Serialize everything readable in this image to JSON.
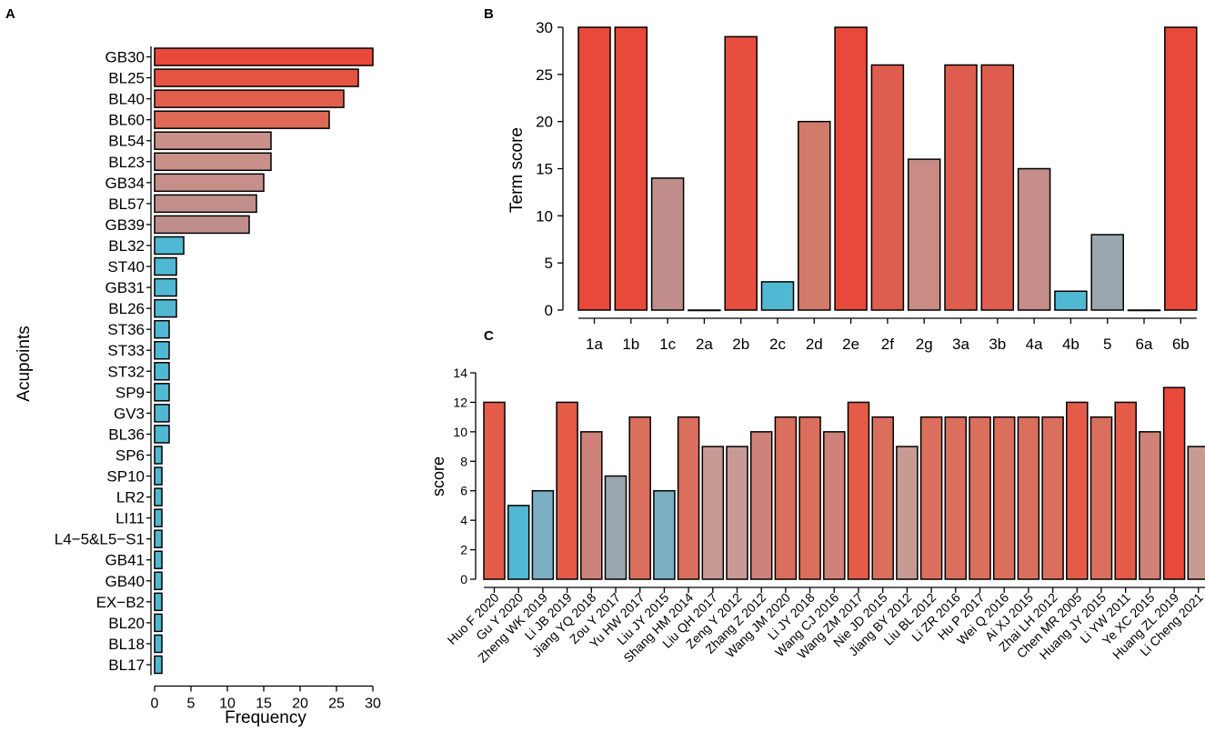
{
  "panels": {
    "a": "A",
    "b": "B",
    "c": "C"
  },
  "colors": {
    "high": "#E8493A",
    "mid": "#BF8E8C",
    "low": "#50B8D2",
    "grey": "#9AA7AE"
  },
  "chart_data": [
    {
      "id": "A",
      "type": "bar",
      "orientation": "horizontal",
      "categories": [
        "GB30",
        "BL25",
        "BL40",
        "BL60",
        "BL54",
        "BL23",
        "GB34",
        "BL57",
        "GB39",
        "BL32",
        "ST40",
        "GB31",
        "BL26",
        "ST36",
        "ST33",
        "ST32",
        "SP9",
        "GV3",
        "BL36",
        "SP6",
        "SP10",
        "LR2",
        "LI11",
        "L4−5&L5−S1",
        "GB41",
        "GB40",
        "EX−B2",
        "BL20",
        "BL18",
        "BL17"
      ],
      "values": [
        30,
        28,
        26,
        24,
        16,
        16,
        15,
        14,
        13,
        4,
        3,
        3,
        3,
        2,
        2,
        2,
        2,
        2,
        2,
        1,
        1,
        1,
        1,
        1,
        1,
        1,
        1,
        1,
        1,
        1
      ],
      "xlabel": "Frequency",
      "ylabel": "Acupoints",
      "xlim": [
        0,
        30
      ],
      "xticks": [
        "0",
        "5",
        "10",
        "15",
        "20",
        "25",
        "30"
      ],
      "grid": false
    },
    {
      "id": "B",
      "type": "bar",
      "categories": [
        "1a",
        "1b",
        "1c",
        "2a",
        "2b",
        "2c",
        "2d",
        "2e",
        "2f",
        "2g",
        "3a",
        "3b",
        "4a",
        "4b",
        "5",
        "6a",
        "6b"
      ],
      "values": [
        30,
        30,
        14,
        0,
        29,
        3,
        20,
        30,
        26,
        16,
        26,
        26,
        15,
        2,
        8,
        0,
        30
      ],
      "xlabel": "",
      "ylabel": "Term score",
      "ylim": [
        0,
        30
      ],
      "yticks": [
        "0",
        "5",
        "10",
        "15",
        "20",
        "25",
        "30"
      ],
      "grid": false
    },
    {
      "id": "C",
      "type": "bar",
      "categories": [
        "Huo F 2020",
        "Gu Y 2020",
        "Zheng WK 2019",
        "Li JB 2019",
        "Jiang YQ 2018",
        "Zou Y 2017",
        "Yu HW 2017",
        "Liu JY 2015",
        "Shang HM 2014",
        "Liu QH 2017",
        "Zeng Y 2012",
        "Zhang Z 2012",
        "Wang JM 2020",
        "Li JY 2018",
        "Wang CJ 2016",
        "Wang ZM 2017",
        "Nie JD 2015",
        "Jiang BY 2012",
        "Liu BL 2012",
        "Li ZR 2016",
        "Hu P 2017",
        "Wei Q 2016",
        "Ai XJ 2015",
        "Zhai LH 2012",
        "Chen MR 2005",
        "Huang JY 2015",
        "Li YW 2011",
        "Ye XC 2015",
        "Huang ZL 2019",
        "Li Cheng 2021"
      ],
      "values": [
        12,
        5,
        6,
        12,
        10,
        7,
        11,
        6,
        11,
        9,
        9,
        10,
        11,
        11,
        10,
        12,
        11,
        9,
        11,
        11,
        11,
        11,
        11,
        11,
        12,
        11,
        12,
        10,
        13,
        9
      ],
      "xlabel": "",
      "ylabel": "score",
      "ylim": [
        0,
        14
      ],
      "yticks": [
        "0",
        "2",
        "4",
        "6",
        "8",
        "10",
        "12",
        "14"
      ],
      "grid": false
    }
  ]
}
